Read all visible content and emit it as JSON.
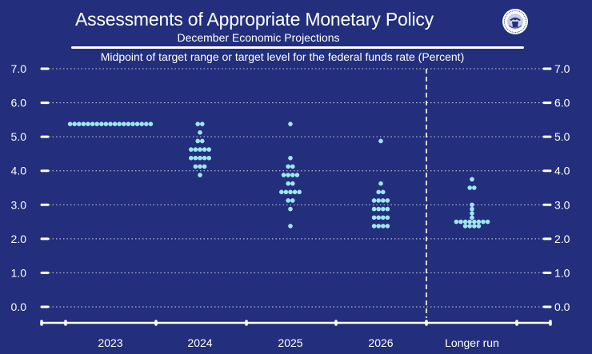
{
  "page": {
    "title": "Assessments of Appropriate Monetary Policy",
    "subtitle": "December Economic Projections"
  },
  "colors": {
    "background": "#232f7c",
    "dot": "#9ee6f0",
    "axis": "#ffffff"
  },
  "seal": {
    "icon": "federal-reserve-seal-icon"
  },
  "chart_data": {
    "type": "scatter",
    "title": "Midpoint of target range or target level for the federal funds rate (Percent)",
    "xlabel": "",
    "ylabel": "Percent",
    "ylim": [
      0,
      7
    ],
    "yticks": [
      "0.0",
      "1.0",
      "2.0",
      "3.0",
      "4.0",
      "5.0",
      "6.0",
      "7.0"
    ],
    "grid": true,
    "categories": [
      "2023",
      "2024",
      "2025",
      "2026",
      "Longer run"
    ],
    "divider_after": "2026",
    "series": [
      {
        "name": "2023",
        "points": [
          {
            "y": 5.375,
            "count": 19
          }
        ]
      },
      {
        "name": "2024",
        "points": [
          {
            "y": 5.375,
            "count": 2
          },
          {
            "y": 5.125,
            "count": 1
          },
          {
            "y": 4.875,
            "count": 2
          },
          {
            "y": 4.625,
            "count": 5
          },
          {
            "y": 4.375,
            "count": 5
          },
          {
            "y": 4.125,
            "count": 3
          },
          {
            "y": 3.875,
            "count": 1
          }
        ]
      },
      {
        "name": "2025",
        "points": [
          {
            "y": 5.375,
            "count": 1
          },
          {
            "y": 4.375,
            "count": 1
          },
          {
            "y": 4.125,
            "count": 2
          },
          {
            "y": 3.875,
            "count": 4
          },
          {
            "y": 3.625,
            "count": 2
          },
          {
            "y": 3.375,
            "count": 5
          },
          {
            "y": 3.125,
            "count": 2
          },
          {
            "y": 2.875,
            "count": 1
          },
          {
            "y": 2.375,
            "count": 1
          }
        ]
      },
      {
        "name": "2026",
        "points": [
          {
            "y": 4.875,
            "count": 1
          },
          {
            "y": 3.625,
            "count": 1
          },
          {
            "y": 3.375,
            "count": 2
          },
          {
            "y": 3.125,
            "count": 4
          },
          {
            "y": 2.875,
            "count": 4
          },
          {
            "y": 2.625,
            "count": 4
          },
          {
            "y": 2.375,
            "count": 4
          }
        ]
      },
      {
        "name": "Longer run",
        "points": [
          {
            "y": 3.75,
            "count": 1
          },
          {
            "y": 3.5,
            "count": 2
          },
          {
            "y": 3.0,
            "count": 1
          },
          {
            "y": 2.875,
            "count": 1
          },
          {
            "y": 2.75,
            "count": 1
          },
          {
            "y": 2.625,
            "count": 1
          },
          {
            "y": 2.5,
            "count": 8
          },
          {
            "y": 2.375,
            "count": 4
          }
        ]
      }
    ]
  }
}
